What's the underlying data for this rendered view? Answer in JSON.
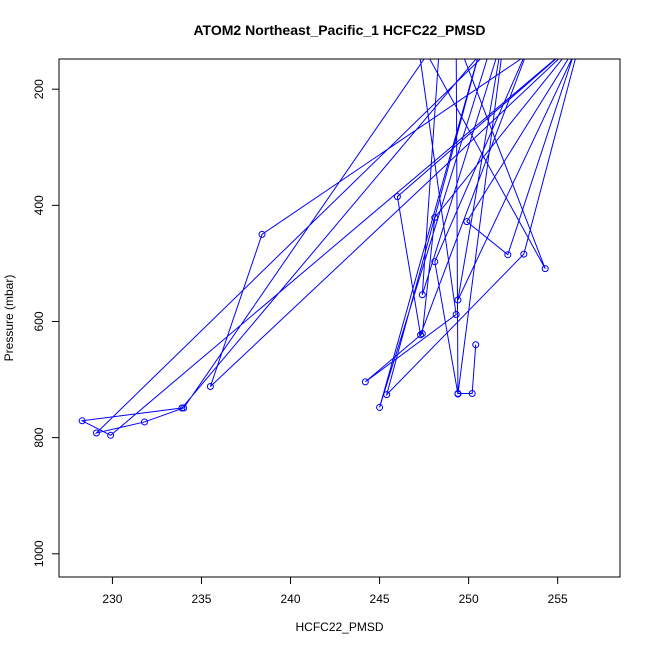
{
  "chart_data": {
    "type": "line",
    "title": "ATOM2 Northeast_Pacific_1 HCFC22_PMSD",
    "xlabel": "HCFC22_PMSD",
    "ylabel": "Pressure (mbar)",
    "xlim": [
      227,
      258.5
    ],
    "ylim": [
      1040,
      148
    ],
    "y_reversed": true,
    "x_ticks": [
      230,
      235,
      240,
      245,
      250,
      255
    ],
    "y_ticks": [
      200,
      400,
      600,
      800,
      1000
    ],
    "grid": false,
    "legend": "none",
    "color": "#0000ff",
    "series": [
      {
        "x": [
          255.0,
          238.4,
          235.5,
          256.3,
          253.1,
          245.4,
          250.9,
          245.0,
          251.4,
          233.9,
          228.3,
          229.9,
          256.4,
          246.0,
          247.3,
          253.6,
          248.1,
          249.4,
          252.0,
          229.1,
          231.8,
          234.0,
          248.4,
          247.4,
          251.9,
          249.4,
          256.4,
          249.9,
          252.2,
          256.2,
          248.1,
          247.4,
          244.2,
          249.3,
          247.1,
          254.3,
          249.3,
          249.4,
          250.2,
          250.4
        ],
        "y": [
          105,
          450,
          712,
          112,
          484,
          726,
          103,
          748,
          112,
          749,
          771,
          796,
          108,
          385,
          623,
          110,
          497,
          725,
          108,
          792,
          773,
          749,
          108,
          554,
          112,
          563,
          108,
          428,
          485,
          112,
          421,
          621,
          704,
          588,
          108,
          509,
          111,
          724,
          724,
          640
        ],
        "break_after": [
          39
        ]
      }
    ]
  }
}
